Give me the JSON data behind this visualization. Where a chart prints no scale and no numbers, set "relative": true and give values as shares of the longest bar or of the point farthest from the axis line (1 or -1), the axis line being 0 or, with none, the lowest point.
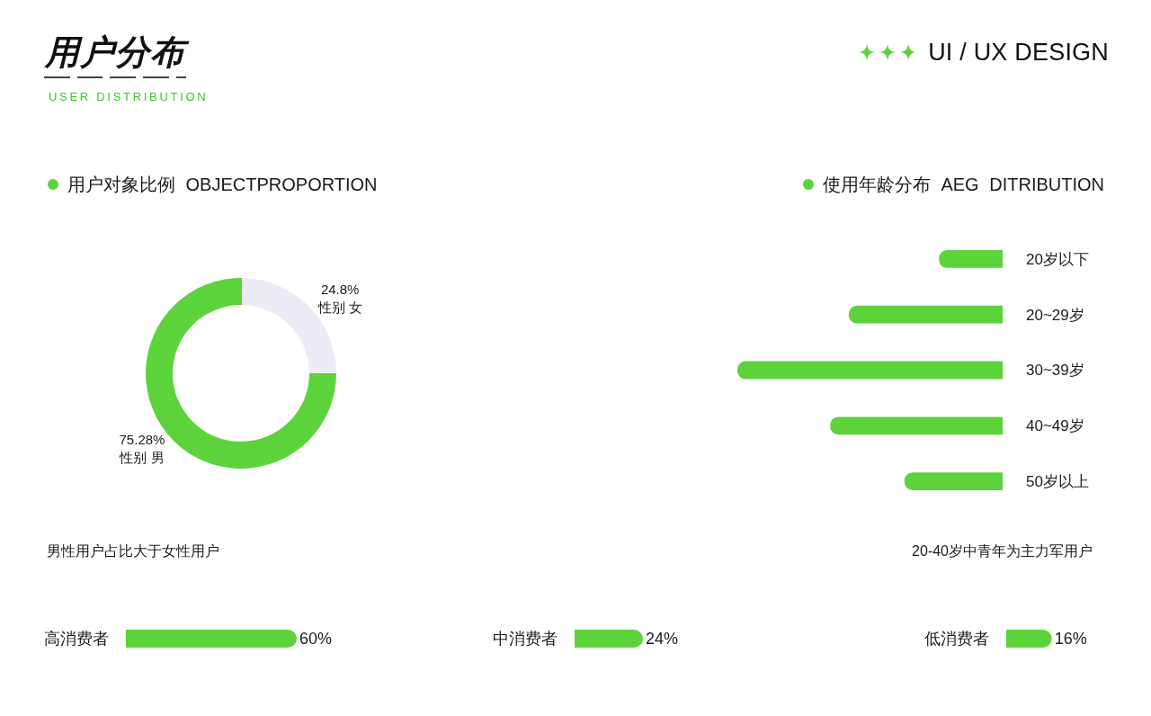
{
  "chart_data": [
    {
      "type": "other",
      "title": "用户分布",
      "subtitle": "USER DISTRIBUTION",
      "annotations": [
        "UI / UX DESIGN"
      ]
    },
    {
      "type": "donut",
      "title": "用户对象比例 OBJECTPROPORTION",
      "categories": [
        "性别 男",
        "性别 女"
      ],
      "values": [
        75.28,
        24.8
      ],
      "value_labels": [
        "75.28%",
        "24.8%"
      ],
      "colors": [
        "#5cd33a",
        "#ececf6"
      ],
      "annotations": [
        "男性用户占比大于女性用户"
      ]
    },
    {
      "type": "bar",
      "orientation": "horizontal",
      "relative": true,
      "title": "使用年龄分布 AEG DITRIBUTION",
      "categories": [
        "20岁以下",
        "20~29岁",
        "30~39岁",
        "40~49岁",
        "50岁以上"
      ],
      "values": [
        0.24,
        0.58,
        1,
        0.65,
        0.37
      ],
      "color": "#5cd33a",
      "annotations": [
        "20-40岁中青年为主力军用户"
      ]
    },
    {
      "type": "bar",
      "orientation": "horizontal",
      "categories": [
        "高消费者"
      ],
      "values": [
        60
      ],
      "value_labels": [
        "60%"
      ],
      "color": "#5cd33a"
    },
    {
      "type": "bar",
      "orientation": "horizontal",
      "categories": [
        "中消费者"
      ],
      "values": [
        24
      ],
      "value_labels": [
        "24%"
      ],
      "color": "#5cd33a"
    },
    {
      "type": "bar",
      "orientation": "horizontal",
      "categories": [
        "低消费者"
      ],
      "values": [
        16
      ],
      "value_labels": [
        "16%"
      ],
      "color": "#5cd33a"
    }
  ]
}
